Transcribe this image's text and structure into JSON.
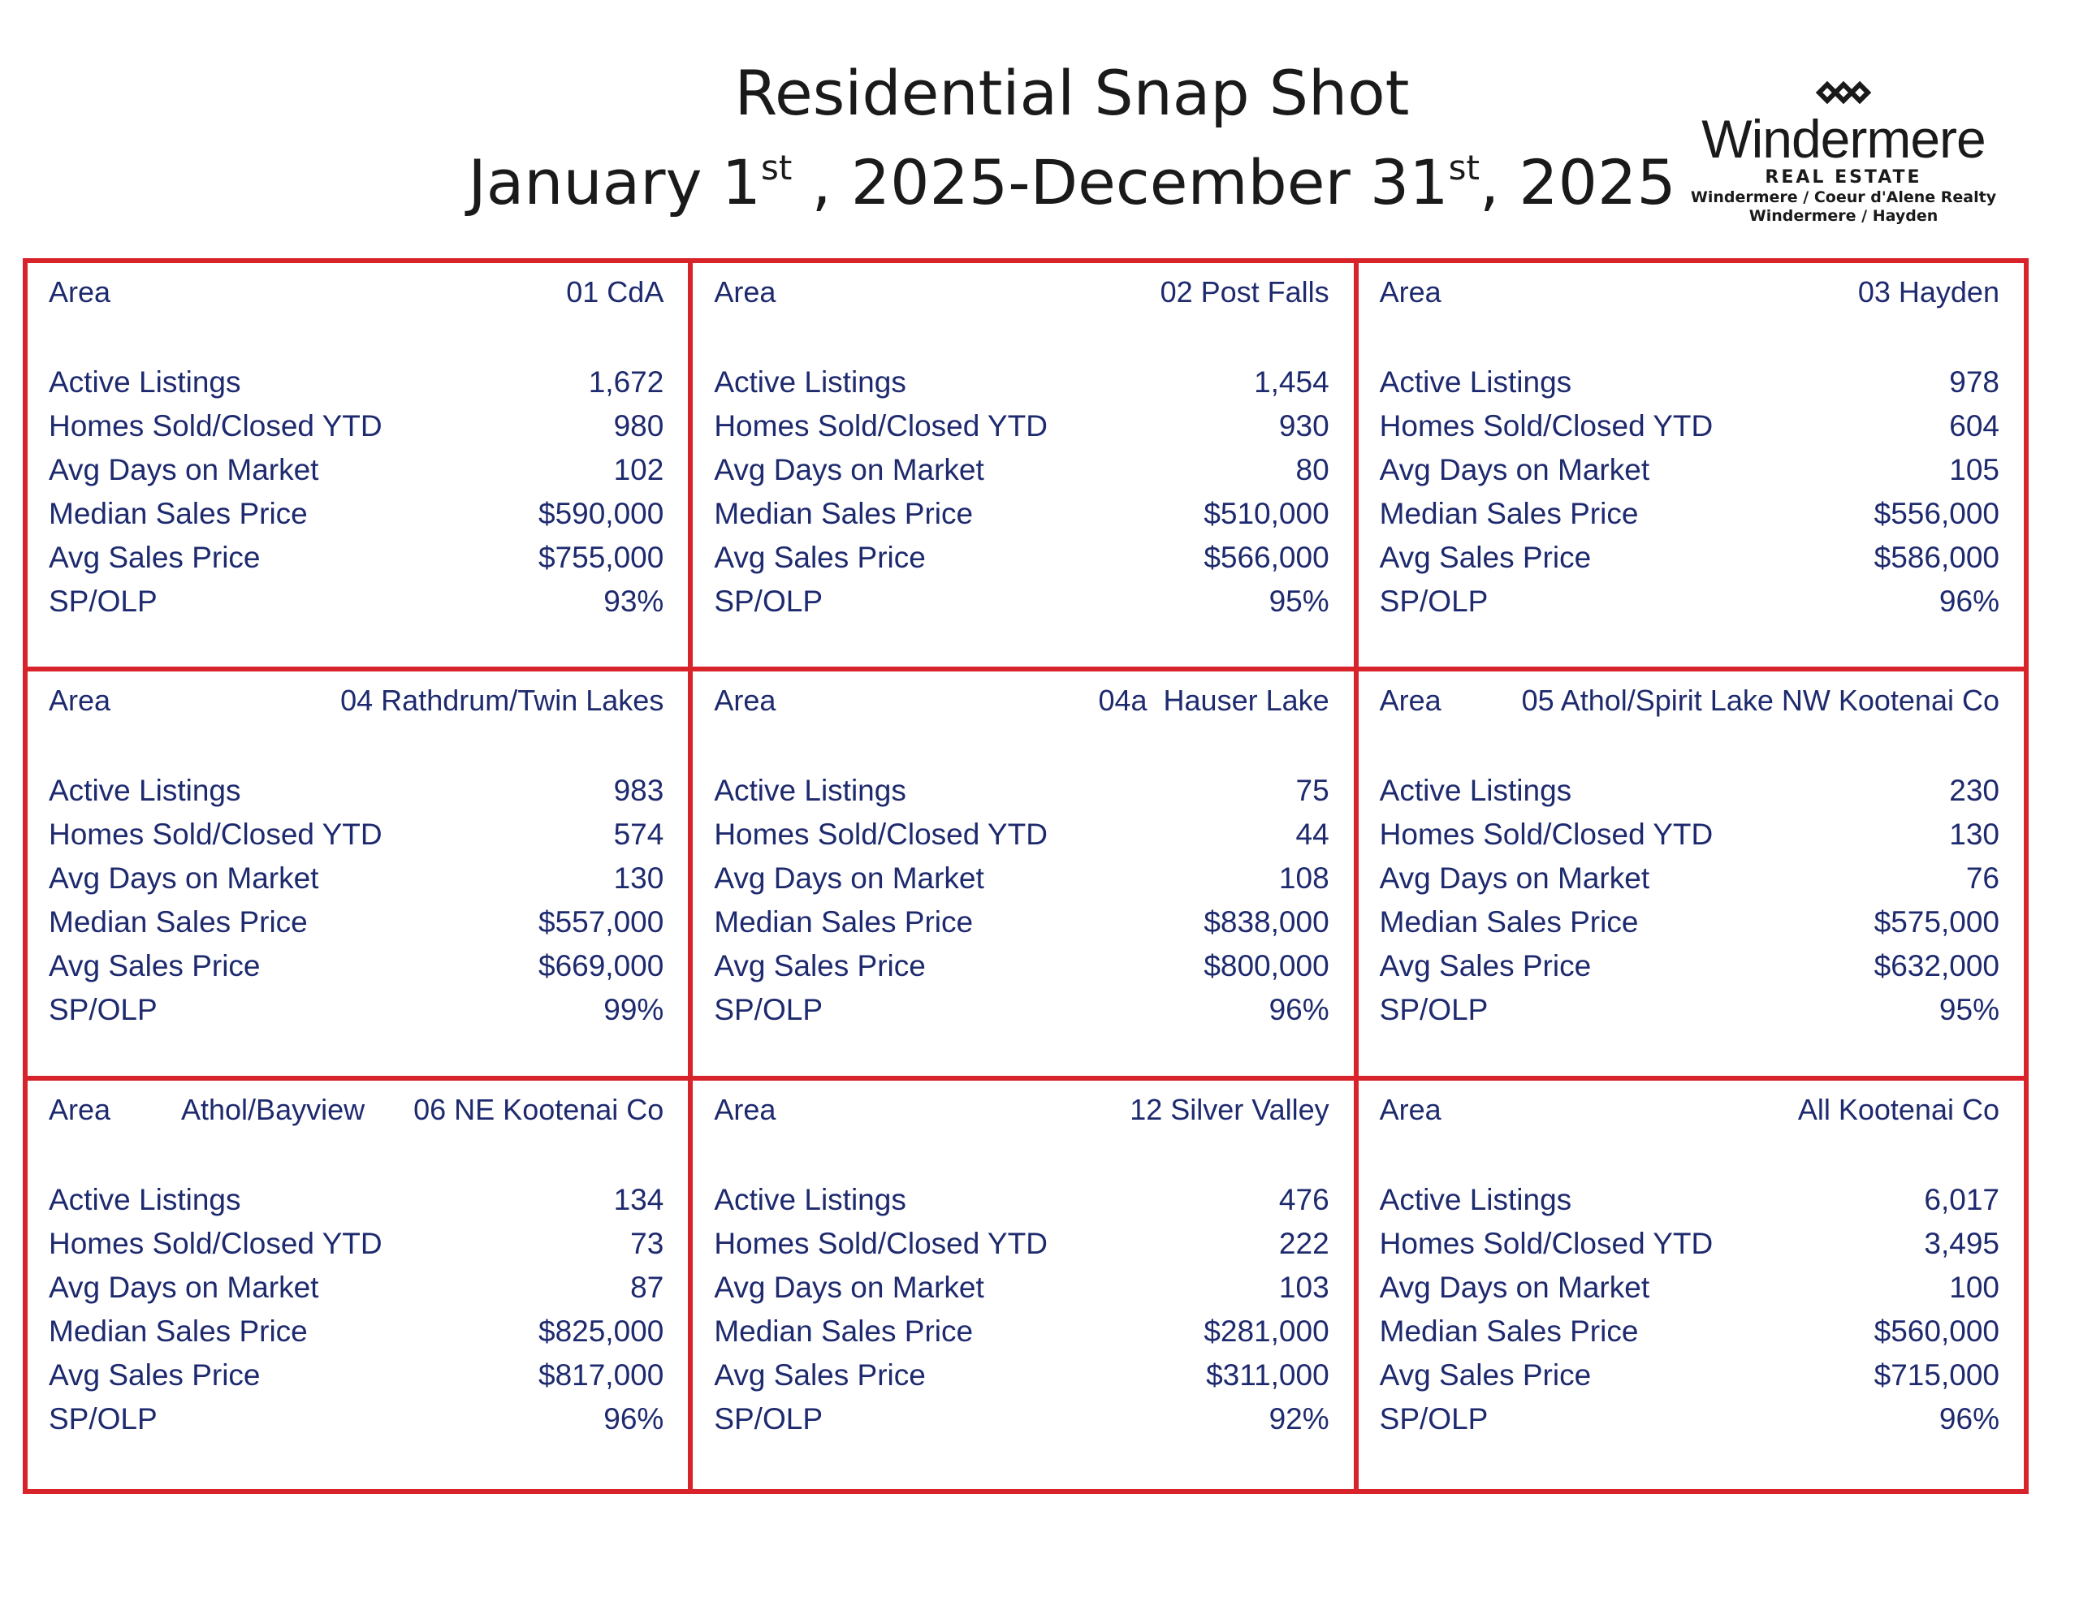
{
  "title": {
    "line1": "Residential Snap Shot",
    "line2_part1": "January 1",
    "line2_sup1": "st",
    "line2_part2": " , 2025-December 31",
    "line2_sup2": "st",
    "line2_part3": ", 2025"
  },
  "logo": {
    "name": "Windermere",
    "sub": "REAL ESTATE",
    "line1": "Windermere / Coeur d'Alene Realty",
    "line2": "Windermere / Hayden"
  },
  "labels": {
    "area": "Area",
    "active_listings": "Active Listings",
    "homes_sold": "Homes Sold/Closed YTD",
    "avg_days": "Avg Days on Market",
    "median_price": "Median Sales Price",
    "avg_price": "Avg Sales Price",
    "sp_olp": "SP/OLP"
  },
  "areas": [
    {
      "name": "01 CdA",
      "active": "1,672",
      "sold": "980",
      "days": "102",
      "median": "$590,000",
      "avg": "$755,000",
      "sp": "93%"
    },
    {
      "name": "02 Post Falls",
      "active": "1,454",
      "sold": "930",
      "days": "80",
      "median": "$510,000",
      "avg": "$566,000",
      "sp": "95%"
    },
    {
      "name": "03 Hayden",
      "active": "978",
      "sold": "604",
      "days": "105",
      "median": "$556,000",
      "avg": "$586,000",
      "sp": "96%"
    },
    {
      "name": "04 Rathdrum/Twin Lakes",
      "active": "983",
      "sold": "574",
      "days": "130",
      "median": "$557,000",
      "avg": "$669,000",
      "sp": "99%"
    },
    {
      "name": "04a  Hauser Lake",
      "active": "75",
      "sold": "44",
      "days": "108",
      "median": "$838,000",
      "avg": "$800,000",
      "sp": "96%"
    },
    {
      "name": "05 Athol/Spirit Lake NW Kootenai Co",
      "active": "230",
      "sold": "130",
      "days": "76",
      "median": "$575,000",
      "avg": "$632,000",
      "sp": "95%"
    },
    {
      "name": "Athol/Bayview      06 NE Kootenai Co",
      "active": "134",
      "sold": "73",
      "days": "87",
      "median": "$825,000",
      "avg": "$817,000",
      "sp": "96%"
    },
    {
      "name": "12 Silver Valley",
      "active": "476",
      "sold": "222",
      "days": "103",
      "median": "$281,000",
      "avg": "$311,000",
      "sp": "92%"
    },
    {
      "name": "All Kootenai Co",
      "active": "6,017",
      "sold": "3,495",
      "days": "100",
      "median": "$560,000",
      "avg": "$715,000",
      "sp": "96%"
    }
  ]
}
